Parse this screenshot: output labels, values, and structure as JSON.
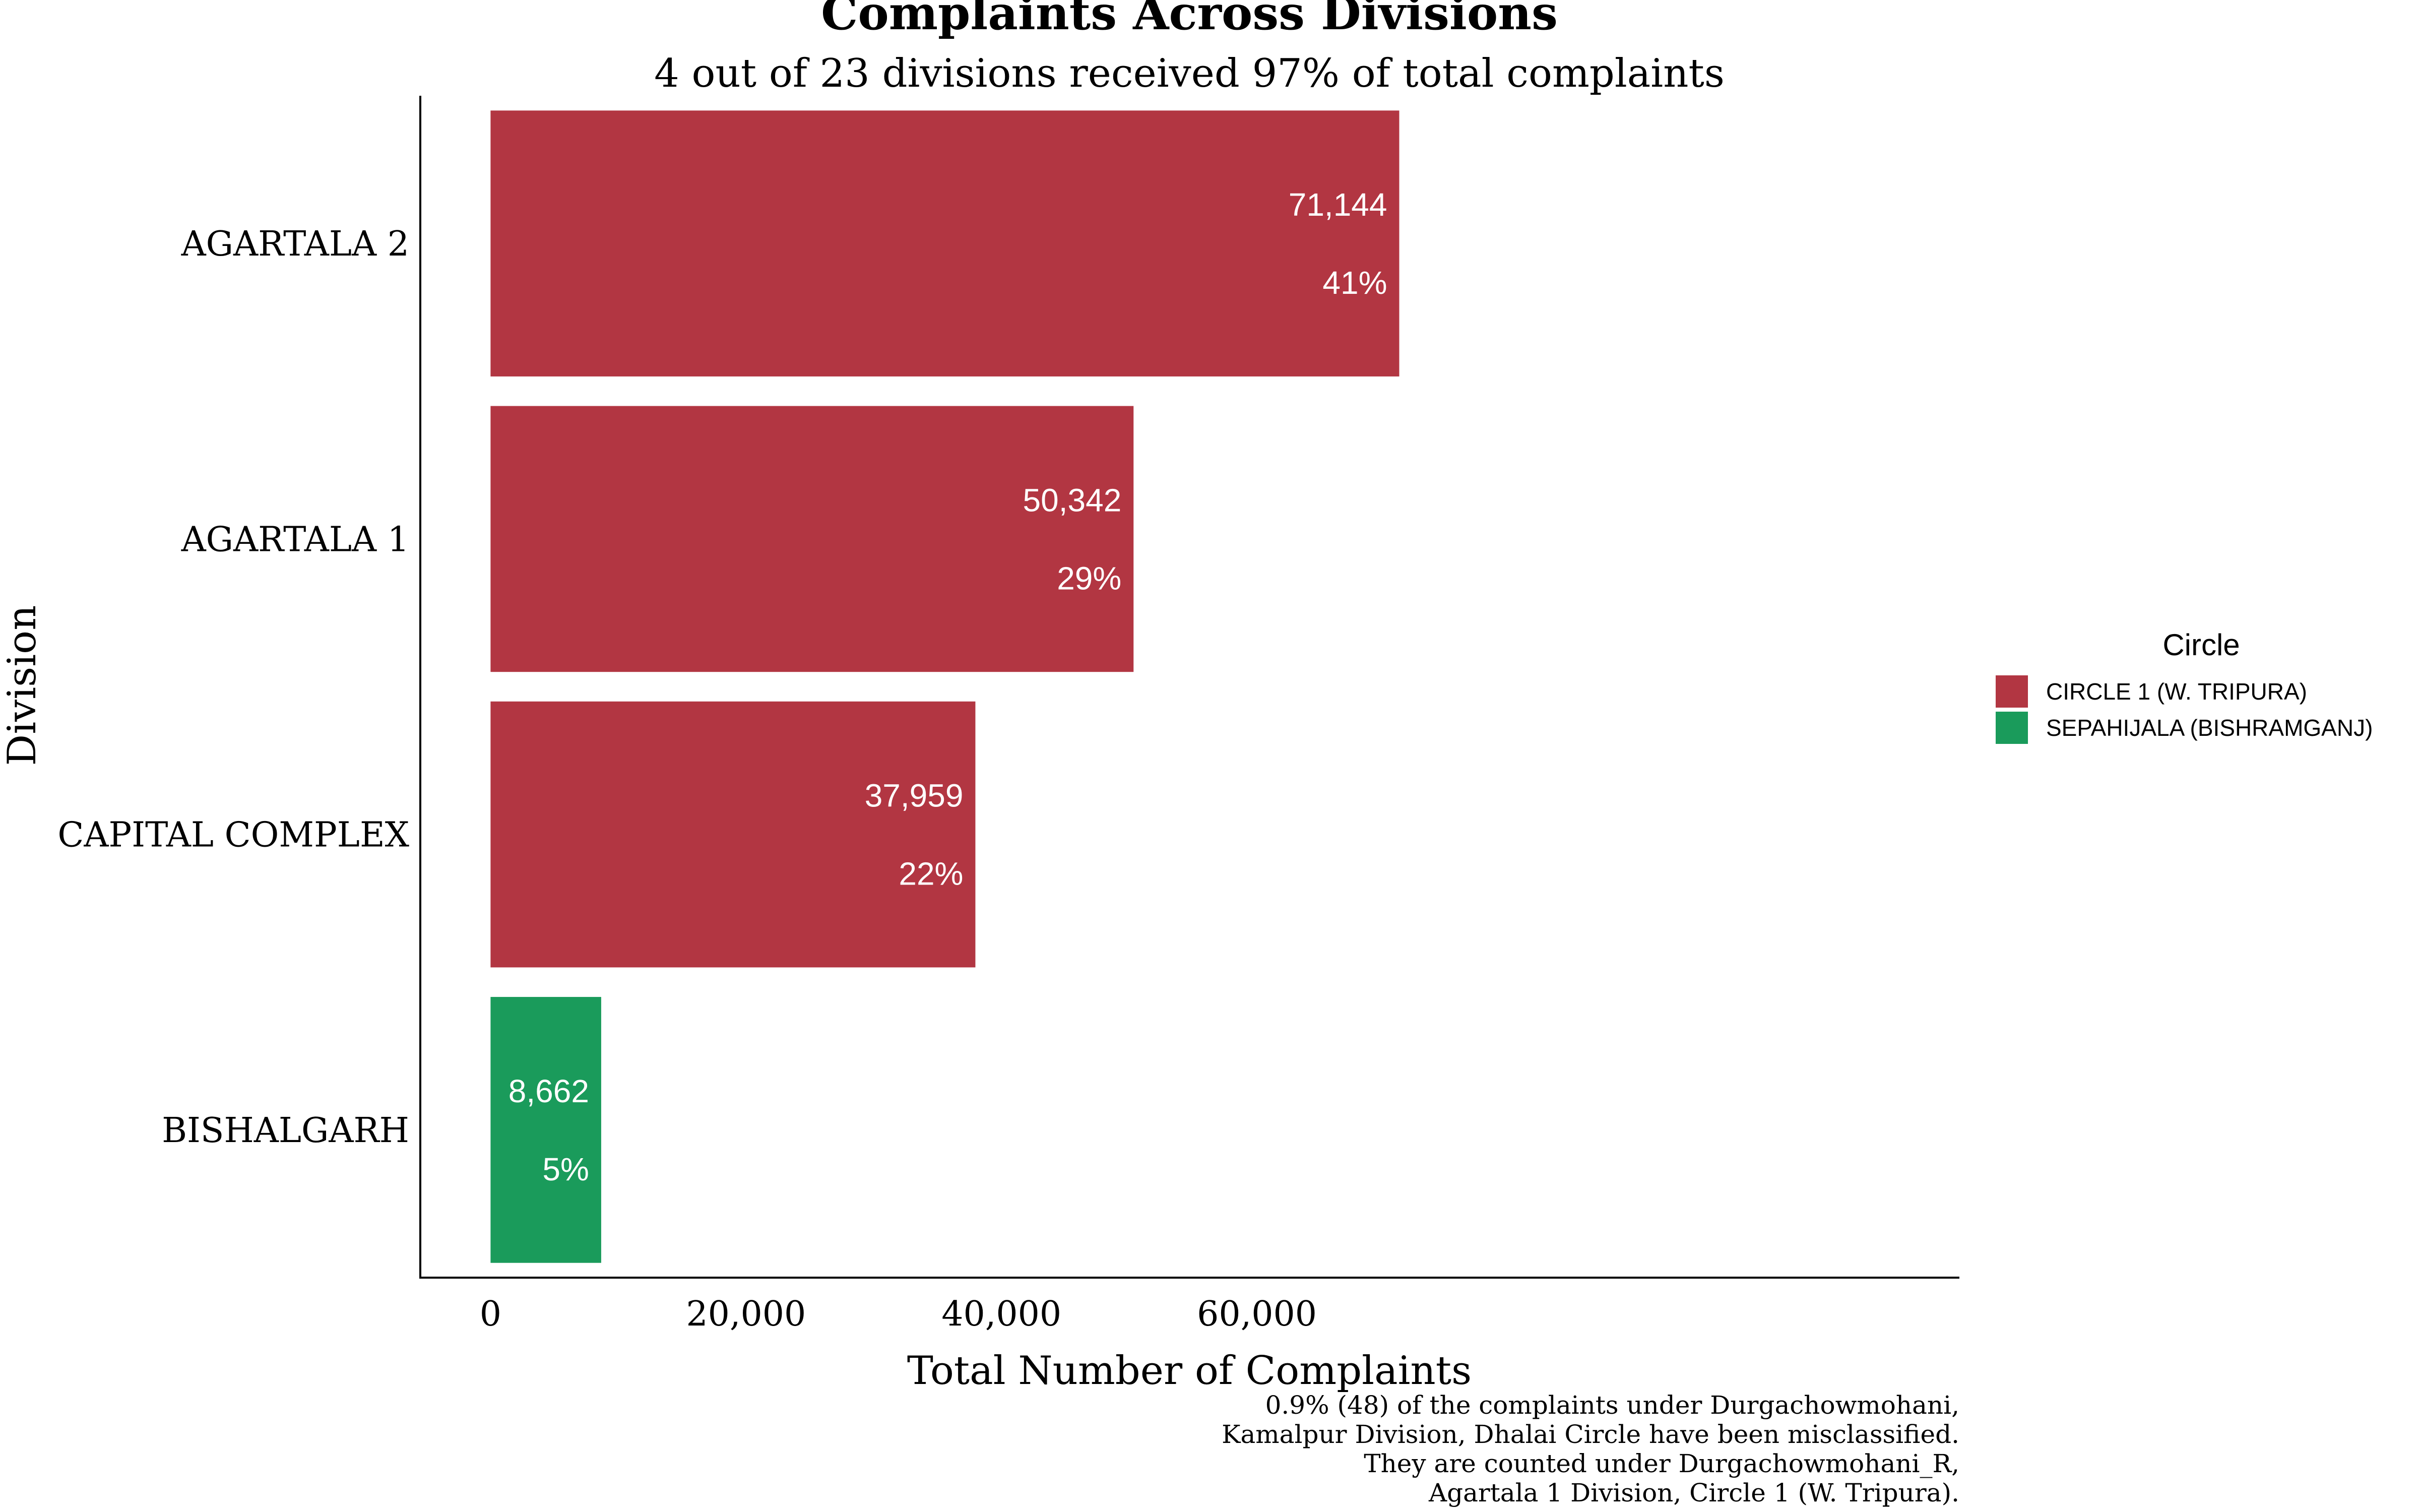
{
  "chart_data": {
    "type": "bar",
    "orientation": "horizontal",
    "title": "Complaints Across Divisions",
    "subtitle": "4 out of 23 divisions received 97% of total complaints",
    "xlabel": "Total Number of Complaints",
    "ylabel": "Division",
    "xlim": [
      -5500,
      115000
    ],
    "xticks": [
      0,
      20000,
      40000,
      60000
    ],
    "xtick_labels": [
      "0",
      "20,000",
      "40,000",
      "60,000"
    ],
    "categories": [
      "AGARTALA 2",
      "AGARTALA 1",
      "CAPITAL COMPLEX",
      "BISHALGARH"
    ],
    "values": [
      71144,
      50342,
      37959,
      8662
    ],
    "value_labels": [
      "71,144",
      "50,342",
      "37,959",
      "8,662"
    ],
    "percent_labels": [
      "41%",
      "29%",
      "22%",
      "5%"
    ],
    "circle": [
      "CIRCLE 1 (W. TRIPURA)",
      "CIRCLE 1 (W. TRIPURA)",
      "CIRCLE 1 (W. TRIPURA)",
      "SEPAHIJALA (BISHRAMGANJ)"
    ],
    "legend": {
      "title": "Circle",
      "position": "right",
      "entries": [
        {
          "name": "CIRCLE 1 (W. TRIPURA)",
          "color": "#b23642"
        },
        {
          "name": "SEPAHIJALA (BISHRAMGANJ)",
          "color": "#1a9b5b"
        }
      ]
    },
    "caption": [
      "0.9% (48) of the complaints under Durgachowmohani,",
      "Kamalpur Division, Dhalai Circle have been misclassified.",
      "They are counted under Durgachowmohani_R,",
      "Agartala 1 Division, Circle 1 (W. Tripura)."
    ],
    "grid": false
  }
}
